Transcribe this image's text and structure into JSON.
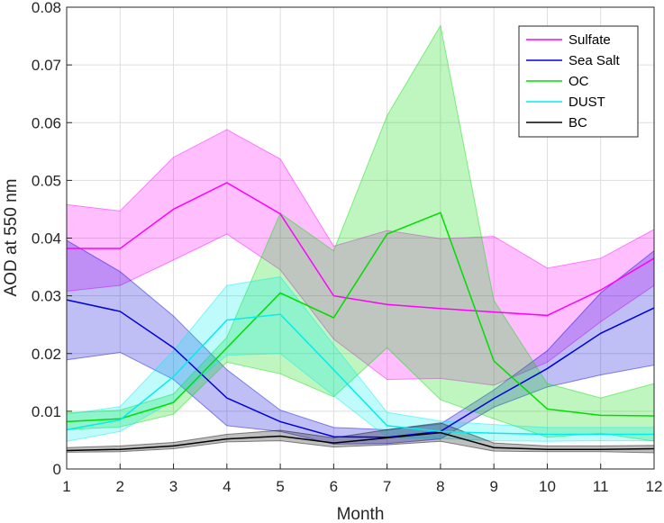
{
  "chart_data": {
    "type": "area",
    "title": "",
    "xlabel": "Month",
    "ylabel": "AOD at 550 nm",
    "x": [
      1,
      2,
      3,
      4,
      5,
      6,
      7,
      8,
      9,
      10,
      11,
      12
    ],
    "xlim": [
      1,
      12
    ],
    "ylim": [
      0,
      0.08
    ],
    "xticks": [
      "1",
      "2",
      "3",
      "4",
      "5",
      "6",
      "7",
      "8",
      "9",
      "10",
      "11",
      "12"
    ],
    "yticks": [
      "0",
      "0.01",
      "0.02",
      "0.03",
      "0.04",
      "0.05",
      "0.06",
      "0.07",
      "0.08"
    ],
    "grid": true,
    "legend_position": "top-right",
    "series": [
      {
        "name": "Sulfate",
        "color": "#ff00ff",
        "values": [
          0.0382,
          0.0382,
          0.045,
          0.0496,
          0.0442,
          0.03,
          0.0285,
          0.0278,
          0.0272,
          0.0266,
          0.031,
          0.0365
        ],
        "upper": [
          0.0458,
          0.0447,
          0.054,
          0.0588,
          0.0537,
          0.0386,
          0.0413,
          0.0399,
          0.0403,
          0.0348,
          0.0365,
          0.0415
        ],
        "lower": [
          0.0308,
          0.0318,
          0.0362,
          0.0407,
          0.0345,
          0.0225,
          0.0155,
          0.0157,
          0.0145,
          0.0185,
          0.0255,
          0.0318
        ]
      },
      {
        "name": "Sea Salt",
        "color": "#0000dd",
        "values": [
          0.0293,
          0.0273,
          0.021,
          0.0123,
          0.0082,
          0.0056,
          0.0055,
          0.0065,
          0.0122,
          0.0174,
          0.0235,
          0.0279
        ],
        "upper": [
          0.0396,
          0.0342,
          0.0265,
          0.0172,
          0.0102,
          0.0072,
          0.0068,
          0.0078,
          0.0137,
          0.0205,
          0.0305,
          0.0378
        ],
        "lower": [
          0.0189,
          0.0202,
          0.0155,
          0.0075,
          0.0065,
          0.0043,
          0.0044,
          0.0052,
          0.0107,
          0.0142,
          0.0163,
          0.018
        ]
      },
      {
        "name": "OC",
        "color": "#00dd00",
        "values": [
          0.0082,
          0.0087,
          0.0115,
          0.021,
          0.0305,
          0.0262,
          0.0407,
          0.0444,
          0.0187,
          0.0104,
          0.0093,
          0.0092
        ],
        "upper": [
          0.0097,
          0.0102,
          0.013,
          0.0228,
          0.0443,
          0.0378,
          0.0612,
          0.0768,
          0.0292,
          0.0148,
          0.0123,
          0.0148
        ],
        "lower": [
          0.0068,
          0.0073,
          0.0095,
          0.0185,
          0.0165,
          0.0125,
          0.021,
          0.012,
          0.0087,
          0.0055,
          0.0062,
          0.0048
        ]
      },
      {
        "name": "DUST",
        "color": "#00eeee",
        "values": [
          0.0068,
          0.0085,
          0.016,
          0.0258,
          0.0268,
          0.0172,
          0.0075,
          0.0065,
          0.0062,
          0.006,
          0.006,
          0.006
        ],
        "upper": [
          0.0095,
          0.0108,
          0.0205,
          0.0318,
          0.0333,
          0.0215,
          0.0098,
          0.0083,
          0.0077,
          0.0072,
          0.0072,
          0.0072
        ],
        "lower": [
          0.0048,
          0.0065,
          0.0118,
          0.0197,
          0.02,
          0.0127,
          0.0055,
          0.0053,
          0.0049,
          0.0048,
          0.0049,
          0.0049
        ]
      },
      {
        "name": "BC",
        "color": "#000000",
        "values": [
          0.0032,
          0.0034,
          0.004,
          0.0052,
          0.0057,
          0.0045,
          0.0054,
          0.0063,
          0.0037,
          0.0034,
          0.0034,
          0.0035
        ],
        "upper": [
          0.0037,
          0.004,
          0.0046,
          0.006,
          0.0067,
          0.0054,
          0.0068,
          0.008,
          0.0045,
          0.004,
          0.004,
          0.0041
        ],
        "lower": [
          0.0029,
          0.003,
          0.0035,
          0.0047,
          0.0049,
          0.0038,
          0.0042,
          0.0048,
          0.0031,
          0.003,
          0.003,
          0.0028
        ]
      }
    ]
  }
}
